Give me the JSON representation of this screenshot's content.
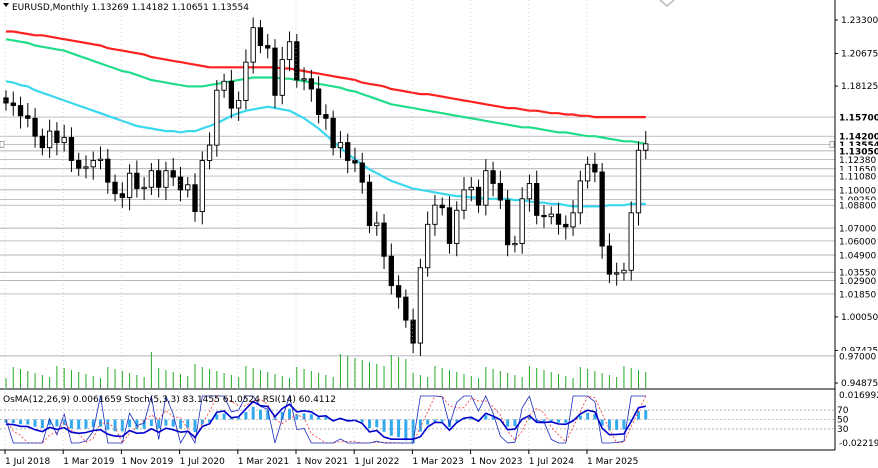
{
  "window": {
    "symbol_line": "EURUSD,Monthly  1.13269 1.14182 1.10651 1.13554",
    "indicator_line": "OsMA(12,26,9) 0.0061659  Stoch(5,3,3) 83.1455 61.0524  RSI(14) 60.4112"
  },
  "colors": {
    "ema200": "#ff2020",
    "ema144": "#22dd88",
    "ema50": "#3ad8ee",
    "candle": "#000000",
    "volume": "#22aa22",
    "osma": "#33aaee",
    "stoch_main": "#1a2bbf",
    "stoch_signal": "#ff3333",
    "rsi": "#0000cc",
    "level_line": "#9a9aa6"
  },
  "price_axis": {
    "ticks": [
      "1.23300",
      "1.20675",
      "1.18125",
      "1.00050",
      "0.97425",
      "0.94875"
    ],
    "levels": [
      "1.15700",
      "1.14200",
      "1.13554",
      "1.13050",
      "1.12380",
      "1.11650",
      "1.11080",
      "1.10000",
      "1.09250",
      "1.08800",
      "1.07000",
      "1.06000",
      "1.04900",
      "1.03550",
      "1.02900",
      "1.01850",
      "0.97000"
    ],
    "level_fontweight_bold": [
      "1.15700",
      "1.14200",
      "1.13554",
      "1.13050"
    ],
    "indicator_ticks": [
      "0.0169925",
      "-0.0221911"
    ],
    "indicator_levels": [
      "70",
      "50",
      "30"
    ]
  },
  "time_axis": {
    "labels": [
      "1 Jul 2018",
      "1 Mar 2019",
      "1 Nov 2019",
      "1 Jul 2020",
      "1 Mar 2021",
      "1 Nov 2021",
      "1 Jul 2022",
      "1 Mar 2023",
      "1 Nov 2023",
      "1 Jul 2024",
      "1 Mar 2025"
    ]
  },
  "chart_data": {
    "type": "candlestick",
    "title": "EURUSD,Monthly",
    "ohlc_last": {
      "open": 1.13269,
      "high": 1.14182,
      "low": 1.10651,
      "close": 1.13554
    },
    "ylim": [
      0.94875,
      1.245
    ],
    "series": [
      {
        "name": "OsMA(12,26,9)",
        "last": 0.0061659
      },
      {
        "name": "Stoch(5,3,3)",
        "main": 83.1455,
        "signal": 61.0524
      },
      {
        "name": "RSI(14)",
        "last": 60.4112
      }
    ],
    "closes": [
      1.168,
      1.166,
      1.158,
      1.156,
      1.142,
      1.133,
      1.146,
      1.137,
      1.141,
      1.123,
      1.117,
      1.118,
      1.123,
      1.124,
      1.106,
      1.097,
      1.094,
      1.113,
      1.101,
      1.102,
      1.115,
      1.102,
      1.115,
      1.11,
      1.1,
      1.104,
      1.083,
      1.123,
      1.135,
      1.178,
      1.185,
      1.164,
      1.17,
      1.2,
      1.227,
      1.213,
      1.211,
      1.174,
      1.202,
      1.216,
      1.186,
      1.187,
      1.179,
      1.159,
      1.156,
      1.133,
      1.137,
      1.123,
      1.121,
      1.106,
      1.072,
      1.074,
      1.048,
      1.025,
      1.016,
      0.998,
      0.98,
      1.039,
      1.073,
      1.088,
      1.086,
      1.058,
      1.084,
      1.1,
      1.102,
      1.088,
      1.115,
      1.105,
      1.092,
      1.057,
      1.058,
      1.093,
      1.105,
      1.08,
      1.079,
      1.081,
      1.073,
      1.071,
      1.082,
      1.107,
      1.12,
      1.114,
      1.056,
      1.034,
      1.035,
      1.037,
      1.082,
      1.131,
      1.136
    ],
    "ema50": [
      1.185,
      1.184,
      1.182,
      1.181,
      1.178,
      1.176,
      1.174,
      1.172,
      1.17,
      1.168,
      1.166,
      1.164,
      1.162,
      1.16,
      1.158,
      1.156,
      1.154,
      1.152,
      1.15,
      1.149,
      1.148,
      1.147,
      1.146,
      1.146,
      1.145,
      1.146,
      1.146,
      1.148,
      1.15,
      1.152,
      1.155,
      1.158,
      1.16,
      1.162,
      1.163,
      1.164,
      1.165,
      1.164,
      1.163,
      1.162,
      1.159,
      1.156,
      1.152,
      1.148,
      1.143,
      1.138,
      1.133,
      1.128,
      1.124,
      1.12,
      1.116,
      1.113,
      1.11,
      1.107,
      1.105,
      1.103,
      1.101,
      1.1,
      1.099,
      1.098,
      1.097,
      1.096,
      1.095,
      1.095,
      1.094,
      1.094,
      1.093,
      1.093,
      1.093,
      1.093,
      1.092,
      1.092,
      1.091,
      1.09,
      1.09,
      1.089,
      1.089,
      1.088,
      1.087,
      1.087,
      1.087,
      1.087,
      1.087,
      1.088,
      1.088,
      1.088,
      1.089,
      1.089,
      1.089
    ],
    "ema144": [
      1.218,
      1.217,
      1.216,
      1.215,
      1.213,
      1.212,
      1.211,
      1.21,
      1.209,
      1.207,
      1.205,
      1.203,
      1.201,
      1.199,
      1.197,
      1.195,
      1.193,
      1.192,
      1.19,
      1.188,
      1.186,
      1.185,
      1.184,
      1.183,
      1.182,
      1.181,
      1.181,
      1.181,
      1.182,
      1.183,
      1.184,
      1.185,
      1.186,
      1.187,
      1.188,
      1.188,
      1.188,
      1.188,
      1.187,
      1.187,
      1.186,
      1.185,
      1.184,
      1.183,
      1.182,
      1.181,
      1.18,
      1.178,
      1.177,
      1.175,
      1.173,
      1.171,
      1.169,
      1.167,
      1.166,
      1.165,
      1.164,
      1.163,
      1.162,
      1.161,
      1.16,
      1.159,
      1.158,
      1.157,
      1.156,
      1.155,
      1.154,
      1.153,
      1.152,
      1.151,
      1.15,
      1.149,
      1.149,
      1.148,
      1.147,
      1.146,
      1.145,
      1.145,
      1.144,
      1.143,
      1.142,
      1.142,
      1.141,
      1.14,
      1.139,
      1.138,
      1.138,
      1.137,
      1.136
    ],
    "ema200": [
      1.224,
      1.224,
      1.223,
      1.222,
      1.221,
      1.221,
      1.22,
      1.219,
      1.218,
      1.217,
      1.216,
      1.215,
      1.214,
      1.213,
      1.211,
      1.21,
      1.209,
      1.208,
      1.207,
      1.206,
      1.204,
      1.203,
      1.202,
      1.201,
      1.2,
      1.199,
      1.198,
      1.197,
      1.196,
      1.196,
      1.196,
      1.196,
      1.196,
      1.196,
      1.196,
      1.196,
      1.196,
      1.196,
      1.195,
      1.195,
      1.194,
      1.193,
      1.192,
      1.191,
      1.19,
      1.189,
      1.188,
      1.187,
      1.186,
      1.184,
      1.183,
      1.182,
      1.181,
      1.179,
      1.178,
      1.177,
      1.176,
      1.175,
      1.175,
      1.174,
      1.173,
      1.172,
      1.171,
      1.17,
      1.169,
      1.168,
      1.167,
      1.166,
      1.165,
      1.164,
      1.164,
      1.163,
      1.162,
      1.162,
      1.161,
      1.16,
      1.16,
      1.159,
      1.159,
      1.158,
      1.158,
      1.157,
      1.157,
      1.157,
      1.157,
      1.157,
      1.157,
      1.157,
      1.157
    ]
  }
}
